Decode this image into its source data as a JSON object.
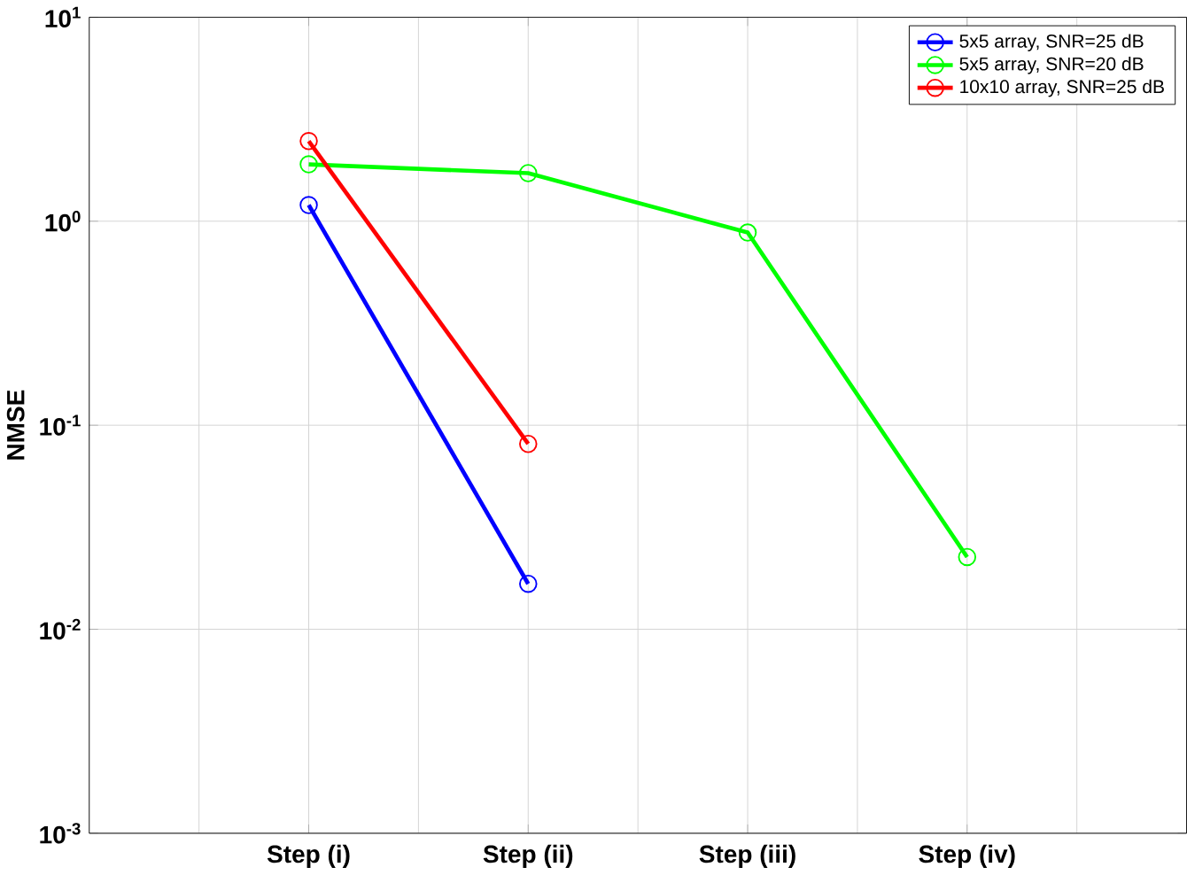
{
  "chart_data": {
    "type": "line",
    "ylabel": "NMSE",
    "log": "y",
    "grid": true,
    "legend": "top right",
    "marker": "circle",
    "line_style": "solid",
    "categories": [
      "Step (i)",
      "Step (ii)",
      "Step (iii)",
      "Step (iv)"
    ],
    "ylim": [
      0.001,
      10
    ],
    "yticks": [
      {
        "value": 0.001,
        "label": "10$^{-3}$"
      },
      {
        "value": 0.01,
        "label": "10$^{-2}$"
      },
      {
        "value": 0.1,
        "label": "10$^{-1}$"
      },
      {
        "value": 1,
        "label": "10$^{0}$"
      },
      {
        "value": 10,
        "label": "10$^{1}$"
      }
    ],
    "series": [
      {
        "name": "5x5 array, SNR=25 dB",
        "color": "#0000ff",
        "values": [
          1.2,
          0.0167,
          null,
          null
        ]
      },
      {
        "name": "5x5 array, SNR=20 dB",
        "color": "#00ff00",
        "values": [
          1.9,
          1.72,
          0.88,
          0.0226
        ]
      },
      {
        "name": "10x10 array, SNR=25 dB",
        "color": "#ff0000",
        "values": [
          2.47,
          0.081,
          null,
          null
        ]
      }
    ]
  }
}
